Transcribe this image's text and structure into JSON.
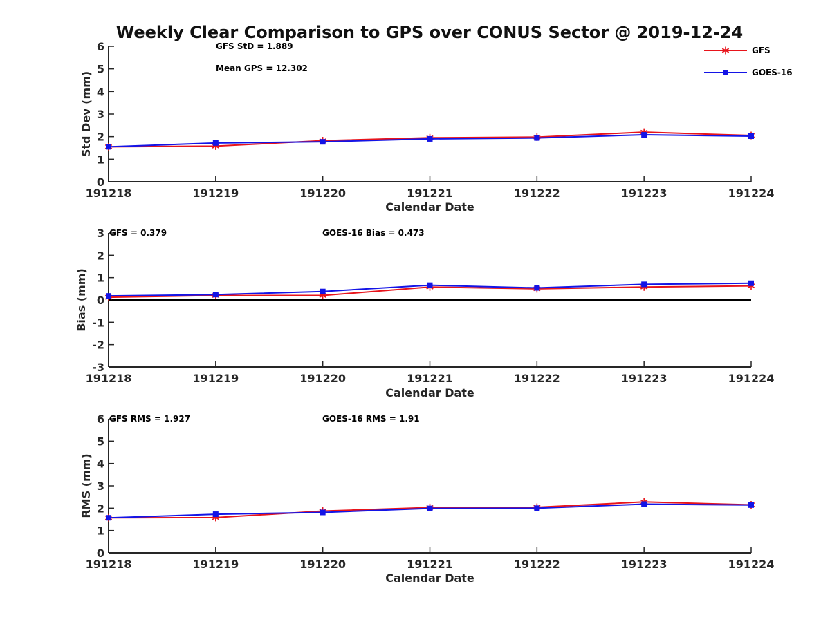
{
  "chart_data": {
    "title": "Weekly Clear Comparison to GPS over CONUS Sector @ 2019-12-24",
    "type": "line",
    "categories": [
      "191218",
      "191219",
      "191220",
      "191221",
      "191222",
      "191223",
      "191224"
    ],
    "legend": {
      "placement": "top-right",
      "entries": [
        "GFS",
        "GOES-16"
      ]
    },
    "colors": {
      "GFS": "#e8141b",
      "GOES-16": "#1414e6",
      "zero_line": "#000000"
    },
    "subplots": [
      {
        "type": "line",
        "xlabel": "Calendar Date",
        "ylabel": "Std Dev (mm)",
        "ylim": [
          0,
          6
        ],
        "yticks": [
          "0",
          "1",
          "2",
          "3",
          "4",
          "5",
          "6"
        ],
        "annotations": [
          "GFS StD = 1.889",
          "Mean GPS = 12.302"
        ],
        "series": [
          {
            "name": "GFS",
            "values": [
              1.55,
              1.58,
              1.82,
              1.95,
              1.98,
              2.2,
              2.05
            ]
          },
          {
            "name": "GOES-16",
            "values": [
              1.55,
              1.72,
              1.77,
              1.9,
              1.94,
              2.08,
              2.02
            ]
          }
        ]
      },
      {
        "type": "line",
        "xlabel": "Calendar Date",
        "ylabel": "Bias (mm)",
        "ylim": [
          -3,
          3
        ],
        "yticks": [
          "-3",
          "-2",
          "-1",
          "0",
          "1",
          "2",
          "3"
        ],
        "zero_line": true,
        "annotations": [
          "GFS = 0.379",
          "GOES-16 Bias  = 0.473"
        ],
        "series": [
          {
            "name": "GFS",
            "values": [
              0.12,
              0.2,
              0.2,
              0.58,
              0.5,
              0.58,
              0.63
            ]
          },
          {
            "name": "GOES-16",
            "values": [
              0.18,
              0.24,
              0.38,
              0.66,
              0.54,
              0.7,
              0.75
            ]
          }
        ]
      },
      {
        "type": "line",
        "xlabel": "Calendar Date",
        "ylabel": "RMS (mm)",
        "ylim": [
          0,
          6
        ],
        "yticks": [
          "0",
          "1",
          "2",
          "3",
          "4",
          "5",
          "6"
        ],
        "annotations": [
          "GFS RMS = 1.927",
          "GOES-16 RMS = 1.91"
        ],
        "series": [
          {
            "name": "GFS",
            "values": [
              1.57,
              1.58,
              1.87,
              2.03,
              2.04,
              2.28,
              2.15
            ]
          },
          {
            "name": "GOES-16",
            "values": [
              1.57,
              1.73,
              1.81,
              1.99,
              2.0,
              2.18,
              2.14
            ]
          }
        ]
      }
    ]
  }
}
